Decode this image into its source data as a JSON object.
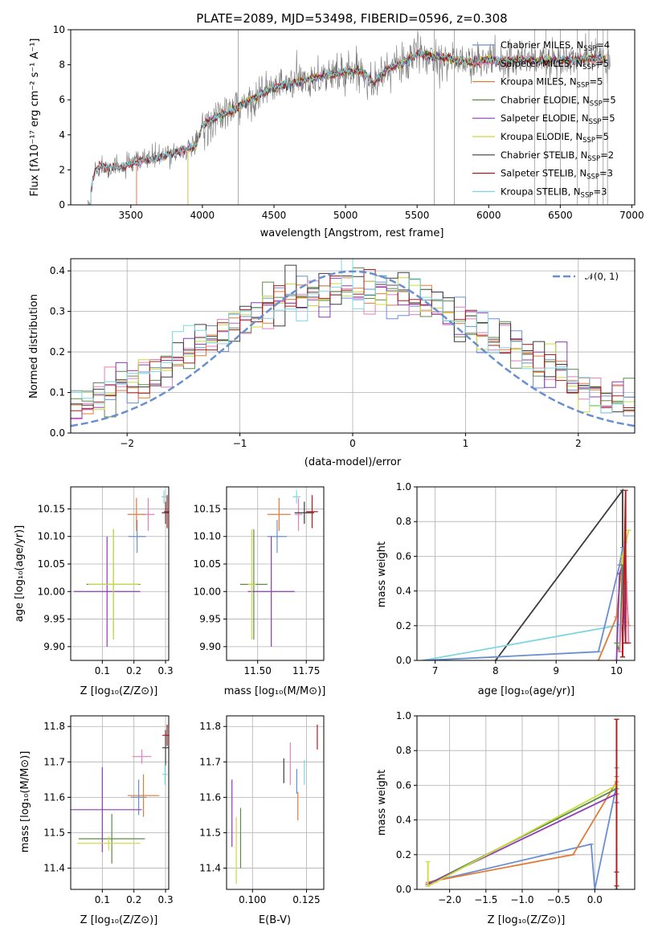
{
  "chart_data": [
    {
      "id": "spectrum",
      "type": "line",
      "title": "PLATE=2089, MJD=53498, FIBERID=0596, z=0.308",
      "xlabel": "wavelength [Angstrom, rest frame]",
      "ylabel": "Flux [f$_\\lambda$10$^{-17}$ erg cm$^{-2}$ s$^{-1}$ A$^{-1}$]",
      "ylabel_display": "Flux [fλ10⁻¹⁷ erg cm⁻² s⁻¹ A⁻¹]",
      "xlim": [
        3080,
        7020
      ],
      "ylim": [
        0,
        10
      ],
      "xticks": [
        3500,
        4000,
        4500,
        5000,
        5500,
        6000,
        6500,
        7000
      ],
      "yticks": [
        0,
        2,
        4,
        6,
        8,
        10
      ],
      "grid": false,
      "legend_position": "top-right",
      "data_range": [
        3200,
        6850
      ],
      "continuum": {
        "x": [
          3200,
          3250,
          3300,
          3400,
          3500,
          3600,
          3700,
          3800,
          3900,
          3950,
          4000,
          4100,
          4200,
          4300,
          4400,
          4500,
          4600,
          4700,
          4800,
          4900,
          5000,
          5100,
          5200,
          5300,
          5400,
          5500,
          5600,
          5700,
          5800,
          5900,
          6000,
          6100,
          6200,
          6300,
          6400,
          6500,
          6600,
          6700,
          6800
        ],
        "y": [
          0.0,
          2.0,
          2.2,
          2.1,
          2.3,
          2.6,
          2.7,
          3.0,
          3.2,
          3.3,
          4.5,
          5.0,
          5.3,
          5.8,
          6.3,
          6.7,
          6.9,
          7.1,
          7.3,
          7.4,
          7.6,
          7.7,
          7.0,
          7.8,
          8.1,
          8.6,
          8.5,
          8.4,
          8.2,
          8.1,
          8.3,
          8.2,
          8.3,
          8.3,
          8.2,
          8.3,
          8.2,
          8.4,
          8.3
        ]
      },
      "series": [
        {
          "name": "Chabrier MILES, N$_{SSP}$=4",
          "label_base": "Chabrier MILES, N",
          "label_sub": "SSP",
          "label_tail": "=4",
          "color": "#6a8fd0",
          "start": 3540
        },
        {
          "name": "Salpeter MILES, N$_{SSP}$=5",
          "label_base": "Salpeter MILES, N",
          "label_sub": "SSP",
          "label_tail": "=5",
          "color": "#e37fbd",
          "start": 3540
        },
        {
          "name": "Kroupa MILES, N$_{SSP}$=5",
          "label_base": "Kroupa MILES, N",
          "label_sub": "SSP",
          "label_tail": "=5",
          "color": "#e07b39",
          "start": 3540
        },
        {
          "name": "Chabrier ELODIE, N$_{SSP}$=5",
          "label_base": "Chabrier ELODIE, N",
          "label_sub": "SSP",
          "label_tail": "=5",
          "color": "#5d8a4a",
          "start": 3900
        },
        {
          "name": "Salpeter ELODIE, N$_{SSP}$=5",
          "label_base": "Salpeter ELODIE, N",
          "label_sub": "SSP",
          "label_tail": "=5",
          "color": "#8e3bb5",
          "start": 3900
        },
        {
          "name": "Kroupa ELODIE, N$_{SSP}$=5",
          "label_base": "Kroupa ELODIE, N",
          "label_sub": "SSP",
          "label_tail": "=5",
          "color": "#c9dc3c",
          "start": 3900
        },
        {
          "name": "Chabrier STELIB, N$_{SSP}$=2",
          "label_base": "Chabrier STELIB, N",
          "label_sub": "SSP",
          "label_tail": "=2",
          "color": "#3c3c3c",
          "start": 3220
        },
        {
          "name": "Salpeter STELIB, N$_{SSP}$=3",
          "label_base": "Salpeter STELIB, N",
          "label_sub": "SSP",
          "label_tail": "=3",
          "color": "#b01c1c",
          "start": 3220
        },
        {
          "name": "Kroupa STELIB, N$_{SSP}$=3",
          "label_base": "Kroupa STELIB, N",
          "label_sub": "SSP",
          "label_tail": "=3",
          "color": "#7fd6e0",
          "start": 3220
        }
      ],
      "spikes": [
        4250,
        5620,
        5760,
        6320,
        6400,
        6500,
        6620,
        6700,
        6760,
        6800,
        6830
      ]
    },
    {
      "id": "residuals",
      "type": "line",
      "xlabel": "(data-model)/error",
      "ylabel": "Normed distribution",
      "xlim": [
        -2.5,
        2.5
      ],
      "ylim": [
        0,
        0.43
      ],
      "xticks": [
        -2,
        -1,
        0,
        1,
        2
      ],
      "yticks": [
        0.0,
        0.1,
        0.2,
        0.3,
        0.4
      ],
      "grid": true,
      "legend_position": "top-right",
      "normal": {
        "name": "$\\mathcal{N}(0,1)$",
        "label_display": "𝒩(0, 1)",
        "color": "#6a8fd0",
        "mean": 0,
        "sigma": 1
      },
      "histogram_bins": {
        "start": -2.5,
        "width": 0.1,
        "count": 50
      }
    },
    {
      "id": "age-vs-Z",
      "type": "scatter",
      "xlabel": "Z [log$_{10}$($Z/Z_\\odot$)]",
      "xlabel_display": "Z [log₁₀(Z/Z⊙)]",
      "ylabel": "age  [log$_{10}$($age/yr$)]",
      "ylabel_display": "age  [log₁₀(age/yr)]",
      "xlim": [
        0.0,
        0.31
      ],
      "ylim": [
        9.875,
        10.19
      ],
      "xticks": [
        0.1,
        0.2,
        0.3
      ],
      "yticks": [
        9.9,
        9.95,
        10.0,
        10.05,
        10.1,
        10.15
      ],
      "grid": true,
      "points": [
        {
          "c": 0,
          "x": 0.21,
          "xerr": 0.028,
          "y": 10.1,
          "yerr": 0.03
        },
        {
          "c": 1,
          "x": 0.245,
          "xerr": 0.02,
          "y": 10.14,
          "yerr": 0.03
        },
        {
          "c": 2,
          "x": 0.208,
          "xerr": 0.028,
          "y": 10.14,
          "yerr": 0.03
        },
        {
          "c": 3,
          "x": 0.135,
          "xerr": 0.085,
          "y": 10.013,
          "yerr": 0.1
        },
        {
          "c": 4,
          "x": 0.115,
          "xerr": 0.105,
          "y": 10.0,
          "yerr": 0.1
        },
        {
          "c": 5,
          "x": 0.135,
          "xerr": 0.08,
          "y": 10.013,
          "yerr": 0.1
        },
        {
          "c": 6,
          "x": 0.3,
          "xerr": 0.012,
          "y": 10.143,
          "yerr": 0.02
        },
        {
          "c": 7,
          "x": 0.305,
          "xerr": 0.01,
          "y": 10.145,
          "yerr": 0.03
        },
        {
          "c": 8,
          "x": 0.295,
          "xerr": 0.008,
          "y": 10.172,
          "yerr": 0.012
        }
      ]
    },
    {
      "id": "age-vs-mass",
      "type": "scatter",
      "xlabel": "mass [log$_{10}$($M/M_\\odot$)]",
      "xlabel_display": "mass [log₁₀(M/M⊙)]",
      "xlim": [
        11.34,
        11.84
      ],
      "ylim": [
        9.875,
        10.19
      ],
      "xticks": [
        11.5,
        11.75
      ],
      "yticks": [
        9.9,
        9.95,
        10.0,
        10.05,
        10.1,
        10.15
      ],
      "grid": true,
      "points": [
        {
          "c": 0,
          "x": 11.6,
          "xerr": 0.05,
          "y": 10.1,
          "yerr": 0.03
        },
        {
          "c": 1,
          "x": 11.71,
          "xerr": 0.02,
          "y": 10.14,
          "yerr": 0.03
        },
        {
          "c": 2,
          "x": 11.61,
          "xerr": 0.06,
          "y": 10.14,
          "yerr": 0.03
        },
        {
          "c": 3,
          "x": 11.48,
          "xerr": 0.07,
          "y": 10.013,
          "yerr": 0.1
        },
        {
          "c": 4,
          "x": 11.57,
          "xerr": 0.12,
          "y": 10.0,
          "yerr": 0.1
        },
        {
          "c": 5,
          "x": 11.47,
          "xerr": 0.02,
          "y": 10.013,
          "yerr": 0.1
        },
        {
          "c": 6,
          "x": 11.74,
          "xerr": 0.05,
          "y": 10.143,
          "yerr": 0.02
        },
        {
          "c": 7,
          "x": 11.78,
          "xerr": 0.03,
          "y": 10.145,
          "yerr": 0.03
        },
        {
          "c": 8,
          "x": 11.7,
          "xerr": 0.02,
          "y": 10.172,
          "yerr": 0.012
        }
      ]
    },
    {
      "id": "weight-vs-age",
      "type": "line",
      "xlabel": "age  [log$_{10}$($age/yr$)]",
      "xlabel_display": "age  [log₁₀(age/yr)]",
      "ylabel": "mass weight",
      "xlim": [
        6.7,
        10.3
      ],
      "ylim": [
        0,
        1
      ],
      "xticks": [
        7,
        8,
        9,
        10
      ],
      "yticks": [
        0.0,
        0.2,
        0.4,
        0.6,
        0.8,
        1.0
      ],
      "grid": true,
      "paths": [
        {
          "c": 6,
          "x": [
            8.0,
            10.1,
            10.1
          ],
          "y": [
            0.0,
            0.98,
            0.02
          ]
        },
        {
          "c": 8,
          "x": [
            6.8,
            10.0,
            10.15,
            10.15,
            10.2
          ],
          "y": [
            0.0,
            0.2,
            0.22,
            0.68,
            0.75
          ]
        },
        {
          "c": 0,
          "x": [
            6.8,
            8.0,
            9.7,
            10.05,
            10.1,
            10.15
          ],
          "y": [
            0.0,
            0.02,
            0.05,
            0.55,
            0.65,
            0.3
          ]
        },
        {
          "c": 2,
          "x": [
            9.7,
            10.0,
            10.1,
            10.15,
            10.2
          ],
          "y": [
            0.0,
            0.25,
            0.6,
            0.45,
            0.2
          ]
        },
        {
          "c": 4,
          "x": [
            10.0,
            10.05,
            10.1,
            10.15
          ],
          "y": [
            0.0,
            0.5,
            0.55,
            0.1
          ]
        },
        {
          "c": 5,
          "x": [
            10.0,
            10.05,
            10.1,
            10.2
          ],
          "y": [
            0.1,
            0.05,
            0.6,
            0.75
          ]
        },
        {
          "c": 3,
          "x": [
            10.0,
            10.05,
            10.1
          ],
          "y": [
            0.1,
            0.05,
            0.55
          ]
        },
        {
          "c": 1,
          "x": [
            10.05,
            10.15,
            10.2
          ],
          "y": [
            0.05,
            0.6,
            0.1
          ]
        },
        {
          "c": 7,
          "x": [
            10.1,
            10.15,
            10.15,
            10.2
          ],
          "y": [
            0.02,
            0.98,
            0.1,
            0.1
          ]
        }
      ]
    },
    {
      "id": "mass-vs-Z",
      "type": "scatter",
      "xlabel": "Z [log$_{10}$($Z/Z_\\odot$)]",
      "xlabel_display": "Z [log₁₀(Z/Z⊙)]",
      "ylabel": "mass [log$_{10}$($M/M_\\odot$)]",
      "ylabel_display": "mass [log₁₀(M/M⊙)]",
      "xlim": [
        0.0,
        0.31
      ],
      "ylim": [
        11.34,
        11.83
      ],
      "xticks": [
        0.1,
        0.2,
        0.3
      ],
      "yticks": [
        11.4,
        11.5,
        11.6,
        11.7,
        11.8
      ],
      "grid": true,
      "points": [
        {
          "c": 0,
          "x": 0.215,
          "xerr": 0.025,
          "y": 11.6,
          "yerr": 0.05
        },
        {
          "c": 1,
          "x": 0.225,
          "xerr": 0.03,
          "y": 11.715,
          "yerr": 0.02
        },
        {
          "c": 2,
          "x": 0.23,
          "xerr": 0.05,
          "y": 11.605,
          "yerr": 0.06
        },
        {
          "c": 3,
          "x": 0.13,
          "xerr": 0.105,
          "y": 11.483,
          "yerr": 0.07
        },
        {
          "c": 4,
          "x": 0.1,
          "xerr": 0.125,
          "y": 11.565,
          "yerr": 0.12
        },
        {
          "c": 5,
          "x": 0.12,
          "xerr": 0.1,
          "y": 11.47,
          "yerr": 0.02
        },
        {
          "c": 6,
          "x": 0.3,
          "xerr": 0.01,
          "y": 11.74,
          "yerr": 0.05
        },
        {
          "c": 7,
          "x": 0.305,
          "xerr": 0.015,
          "y": 11.775,
          "yerr": 0.03
        },
        {
          "c": 8,
          "x": 0.298,
          "xerr": 0.008,
          "y": 11.665,
          "yerr": 0.03
        }
      ]
    },
    {
      "id": "mass-vs-EBV",
      "type": "scatter",
      "xlabel": "E(B-V)",
      "xlim": [
        0.088,
        0.133
      ],
      "ylim": [
        11.34,
        11.83
      ],
      "xticks": [
        0.1,
        0.125
      ],
      "yticks": [
        11.4,
        11.5,
        11.6,
        11.7,
        11.8
      ],
      "grid": true,
      "points": [
        {
          "c": 0,
          "x": 0.1205,
          "y": 11.645,
          "yerr": 0.035
        },
        {
          "c": 1,
          "x": 0.1175,
          "y": 11.695,
          "yerr": 0.06
        },
        {
          "c": 2,
          "x": 0.121,
          "y": 11.575,
          "yerr": 0.04
        },
        {
          "c": 3,
          "x": 0.0945,
          "y": 11.485,
          "yerr": 0.085
        },
        {
          "c": 4,
          "x": 0.0905,
          "y": 11.555,
          "yerr": 0.095
        },
        {
          "c": 5,
          "x": 0.0925,
          "y": 11.45,
          "yerr": 0.095
        },
        {
          "c": 6,
          "x": 0.1145,
          "y": 11.675,
          "yerr": 0.035
        },
        {
          "c": 7,
          "x": 0.13,
          "y": 11.77,
          "yerr": 0.035
        },
        {
          "c": 8,
          "x": 0.124,
          "y": 11.67,
          "yerr": 0.035
        }
      ]
    },
    {
      "id": "weight-vs-Z",
      "type": "line",
      "xlabel": "Z [log$_{10}$($Z/Z_\\odot$)]",
      "xlabel_display": "Z [log₁₀(Z/Z⊙)]",
      "ylabel": "mass weight",
      "xlim": [
        -2.45,
        0.55
      ],
      "ylim": [
        0,
        1
      ],
      "xticks": [
        -2.0,
        -1.5,
        -1.0,
        -0.5,
        0.0
      ],
      "yticks": [
        0.0,
        0.2,
        0.4,
        0.6,
        0.8,
        1.0
      ],
      "grid": true,
      "paths": [
        {
          "c": 0,
          "x": [
            -2.3,
            -2.2,
            -0.05,
            0.0,
            0.3,
            0.3
          ],
          "y": [
            0.03,
            0.05,
            0.26,
            0.0,
            0.6,
            0.7
          ]
        },
        {
          "c": 2,
          "x": [
            -2.3,
            -2.2,
            -0.3,
            0.3,
            0.3
          ],
          "y": [
            0.04,
            0.05,
            0.2,
            0.62,
            0.65
          ]
        },
        {
          "c": 3,
          "x": [
            -2.3,
            -2.25,
            0.3
          ],
          "y": [
            0.02,
            0.04,
            0.58
          ]
        },
        {
          "c": 4,
          "x": [
            -2.3,
            -2.25,
            0.3,
            0.3
          ],
          "y": [
            0.03,
            0.04,
            0.55,
            0.5
          ]
        },
        {
          "c": 5,
          "x": [
            -2.3,
            -2.3,
            -2.2,
            0.3
          ],
          "y": [
            0.16,
            0.02,
            0.04,
            0.6
          ]
        },
        {
          "c": 8,
          "x": [
            0.3,
            0.3,
            0.3
          ],
          "y": [
            0.0,
            0.8,
            0.2
          ]
        },
        {
          "c": 6,
          "x": [
            0.3,
            0.3
          ],
          "y": [
            0.0,
            0.98
          ]
        },
        {
          "c": 7,
          "x": [
            0.3,
            0.3,
            0.3
          ],
          "y": [
            0.02,
            0.98,
            0.1
          ]
        }
      ]
    }
  ]
}
